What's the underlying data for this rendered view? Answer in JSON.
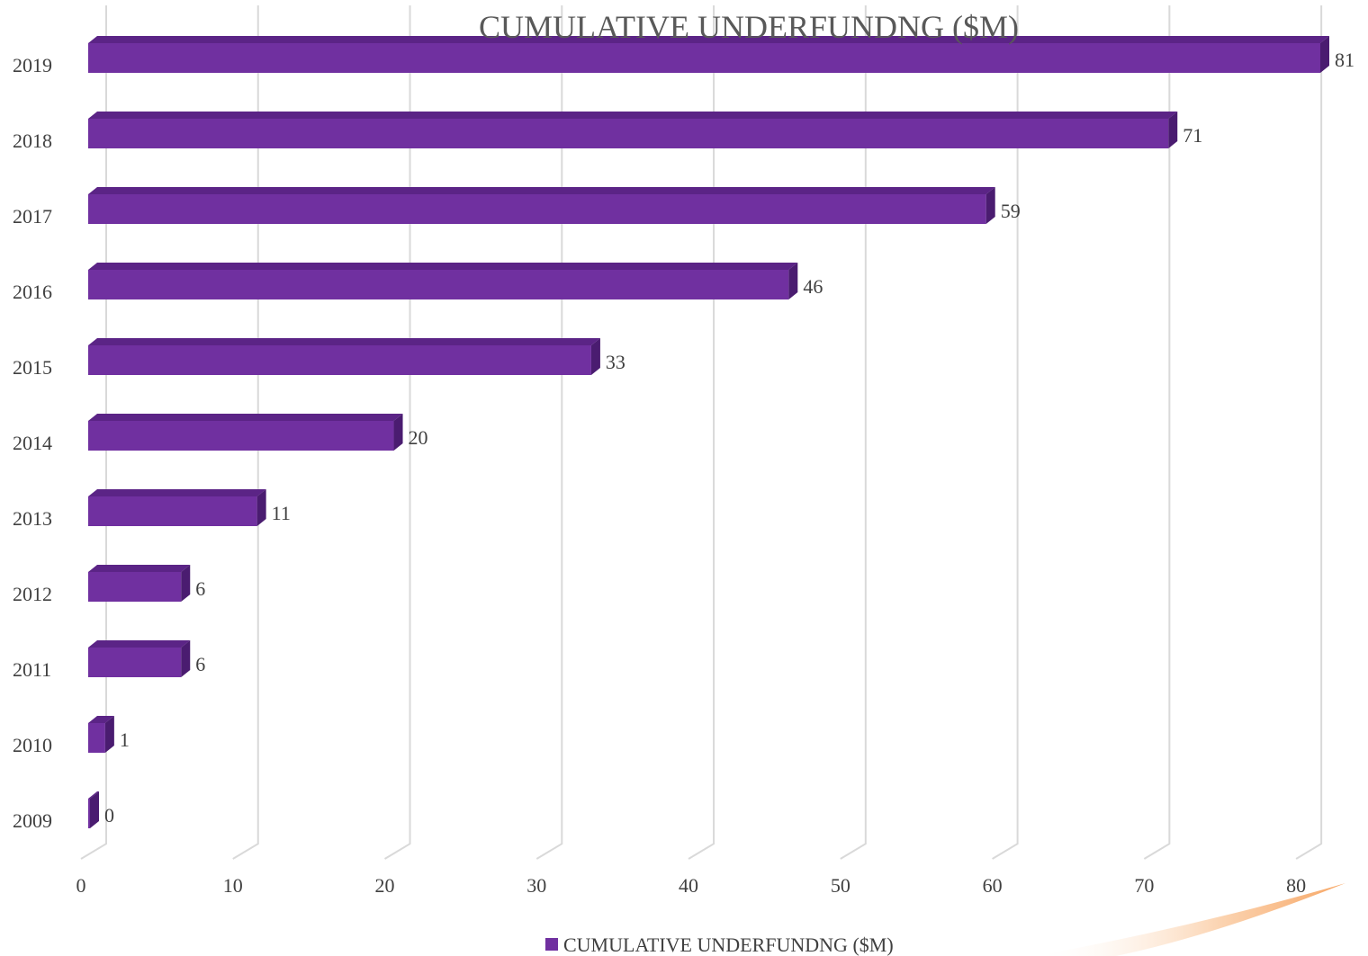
{
  "chart_data": {
    "type": "bar",
    "orientation": "horizontal",
    "title": "CUMULATIVE UNDERFUNDNG ($M)",
    "categories": [
      "2009",
      "2010",
      "2011",
      "2012",
      "2013",
      "2014",
      "2015",
      "2016",
      "2017",
      "2018",
      "2019"
    ],
    "series": [
      {
        "name": "CUMULATIVE UNDERFUNDNG ($M)",
        "values": [
          0,
          1,
          6,
          6,
          11,
          20,
          33,
          46,
          59,
          71,
          81
        ],
        "color": "#7030a0"
      }
    ],
    "xlim": [
      0,
      80
    ],
    "xticks": [
      0,
      10,
      20,
      30,
      40,
      50,
      60,
      70,
      80
    ],
    "grid": true,
    "legend": "bottom",
    "data_labels": true
  }
}
